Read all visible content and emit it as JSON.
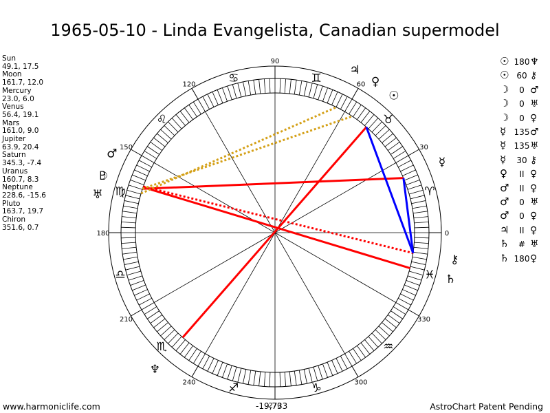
{
  "title": "1965-05-10 - Linda Evangelista, Canadian supermodel",
  "planets": [
    {
      "name": "Sun",
      "coords": "49.1, 17.5"
    },
    {
      "name": "Moon",
      "coords": "161.7, 12.0"
    },
    {
      "name": "Mercury",
      "coords": "23.0, 6.0"
    },
    {
      "name": "Venus",
      "coords": "56.4, 19.1"
    },
    {
      "name": "Mars",
      "coords": "161.0, 9.0"
    },
    {
      "name": "Jupiter",
      "coords": "63.9, 20.4"
    },
    {
      "name": "Saturn",
      "coords": "345.3, -7.4"
    },
    {
      "name": "Uranus",
      "coords": "160.7, 8.3"
    },
    {
      "name": "Neptune",
      "coords": "228.6, -15.6"
    },
    {
      "name": "Pluto",
      "coords": "163.7, 19.7"
    },
    {
      "name": "Chiron",
      "coords": "351.6, 0.7"
    }
  ],
  "aspects": [
    {
      "p1": "☉",
      "aspect": "180",
      "p2": "♆"
    },
    {
      "p1": "☉",
      "aspect": "60",
      "p2": "⚷"
    },
    {
      "p1": "☽",
      "aspect": "0",
      "p2": "♂"
    },
    {
      "p1": "☽",
      "aspect": "0",
      "p2": "♅"
    },
    {
      "p1": "☽",
      "aspect": "0",
      "p2": "♀"
    },
    {
      "p1": "☿",
      "aspect": "135",
      "p2": "♂"
    },
    {
      "p1": "☿",
      "aspect": "135",
      "p2": "♅"
    },
    {
      "p1": "☿",
      "aspect": "30",
      "p2": "⚷"
    },
    {
      "p1": "♀",
      "aspect": "II",
      "p2": "♀"
    },
    {
      "p1": "♂",
      "aspect": "II",
      "p2": "♀"
    },
    {
      "p1": "♂",
      "aspect": "0",
      "p2": "♅"
    },
    {
      "p1": "♂",
      "aspect": "0",
      "p2": "♀"
    },
    {
      "p1": "♃",
      "aspect": "II",
      "p2": "♀"
    },
    {
      "p1": "♄",
      "aspect": "#",
      "p2": "♅"
    },
    {
      "p1": "♄",
      "aspect": "180",
      "p2": "♀"
    }
  ],
  "wheel": {
    "degree_labels": [
      "0",
      "30",
      "60",
      "90",
      "120",
      "150",
      "180",
      "210",
      "240",
      "270",
      "300",
      "330"
    ],
    "zodiac_glyphs": [
      "♈",
      "♉",
      "♊",
      "♋",
      "♌",
      "♍",
      "♎",
      "♏",
      "♐",
      "♑",
      "♒",
      "♓"
    ],
    "planet_longitudes": {
      "Sun": 49.1,
      "Moon": 161.7,
      "Mercury": 23.0,
      "Venus": 56.4,
      "Mars": 161.0,
      "Jupiter": 63.9,
      "Saturn": 345.3,
      "Uranus": 160.7,
      "Neptune": 228.6,
      "Pluto": 163.7,
      "Chiron": 351.6
    },
    "planet_glyphs": {
      "Sun": "☉",
      "Moon": "☽",
      "Mercury": "☿",
      "Venus": "♀",
      "Mars": "♂",
      "Jupiter": "♃",
      "Saturn": "♄",
      "Uranus": "♅",
      "Neptune": "♆",
      "Pluto": "♇",
      "Chiron": "⚷"
    },
    "aspect_lines": [
      {
        "from": "Sun",
        "to": "Neptune",
        "color": "#ff0000",
        "style": "solid"
      },
      {
        "from": "Moon",
        "to": "Mercury",
        "color": "#ff0000",
        "style": "solid"
      },
      {
        "from": "Mars",
        "to": "Saturn",
        "color": "#ff0000",
        "style": "solid"
      },
      {
        "from": "Uranus",
        "to": "Chiron",
        "color": "#ff0000",
        "style": "dotted"
      },
      {
        "from": "Pluto",
        "to": "Jupiter",
        "color": "#d4a017",
        "style": "dotted"
      },
      {
        "from": "Moon",
        "to": "Venus",
        "color": "#d4a017",
        "style": "dotted"
      },
      {
        "from": "Sun",
        "to": "Chiron",
        "color": "#0000ff",
        "style": "solid"
      },
      {
        "from": "Mercury",
        "to": "Chiron",
        "color": "#0000ff",
        "style": "solid"
      }
    ]
  },
  "footer": {
    "left": "www.harmoniclife.com",
    "center": "-19,733",
    "right": "AstroChart Patent Pending"
  }
}
